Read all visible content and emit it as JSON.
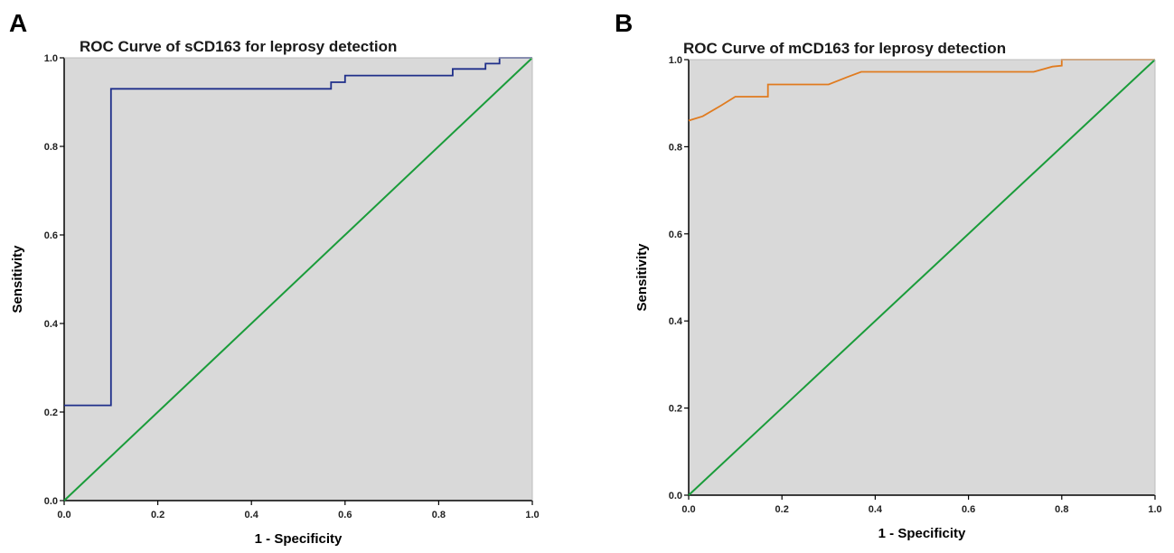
{
  "chart_data": [
    {
      "panel": "A",
      "type": "line",
      "title": "ROC Curve of sCD163 for leprosy detection",
      "xlabel": "1 - Specificity",
      "ylabel": "Sensitivity",
      "xlim": [
        0,
        1
      ],
      "ylim": [
        0,
        1
      ],
      "xticks": [
        "0.0",
        "0.2",
        "0.4",
        "0.6",
        "0.8",
        "1.0"
      ],
      "yticks": [
        "0.0",
        "0.2",
        "0.4",
        "0.6",
        "0.8",
        "1.0"
      ],
      "grid": false,
      "background": "#d9d9d9",
      "series": [
        {
          "color": "#1f2f8a",
          "step": true,
          "x": [
            0.0,
            0.1,
            0.1,
            0.57,
            0.57,
            0.6,
            0.6,
            0.83,
            0.83,
            0.9,
            0.9,
            0.93,
            0.93,
            1.0
          ],
          "y": [
            0.215,
            0.215,
            0.93,
            0.93,
            0.945,
            0.945,
            0.96,
            0.96,
            0.975,
            0.975,
            0.987,
            0.987,
            1.0,
            1.0
          ]
        },
        {
          "color": "#1a9c3a",
          "step": false,
          "x": [
            0,
            1
          ],
          "y": [
            0,
            1
          ]
        }
      ]
    },
    {
      "panel": "B",
      "type": "line",
      "title": "ROC Curve of mCD163 for leprosy detection",
      "xlabel": "1 - Specificity",
      "ylabel": "Sensitivity",
      "xlim": [
        0,
        1
      ],
      "ylim": [
        0,
        1
      ],
      "xticks": [
        "0.0",
        "0.2",
        "0.4",
        "0.6",
        "0.8",
        "1.0"
      ],
      "yticks": [
        "0.0",
        "0.2",
        "0.4",
        "0.6",
        "0.8",
        "1.0"
      ],
      "grid": false,
      "background": "#d9d9d9",
      "series": [
        {
          "color": "#e07b1f",
          "step": false,
          "x": [
            0.0,
            0.03,
            0.07,
            0.1,
            0.17,
            0.17,
            0.3,
            0.34,
            0.37,
            0.74,
            0.78,
            0.8,
            0.8,
            1.0
          ],
          "y": [
            0.86,
            0.87,
            0.895,
            0.915,
            0.915,
            0.943,
            0.943,
            0.96,
            0.972,
            0.972,
            0.984,
            0.986,
            1.0,
            1.0
          ]
        },
        {
          "color": "#1a9c3a",
          "step": false,
          "x": [
            0,
            1
          ],
          "y": [
            0,
            1
          ]
        }
      ]
    }
  ]
}
